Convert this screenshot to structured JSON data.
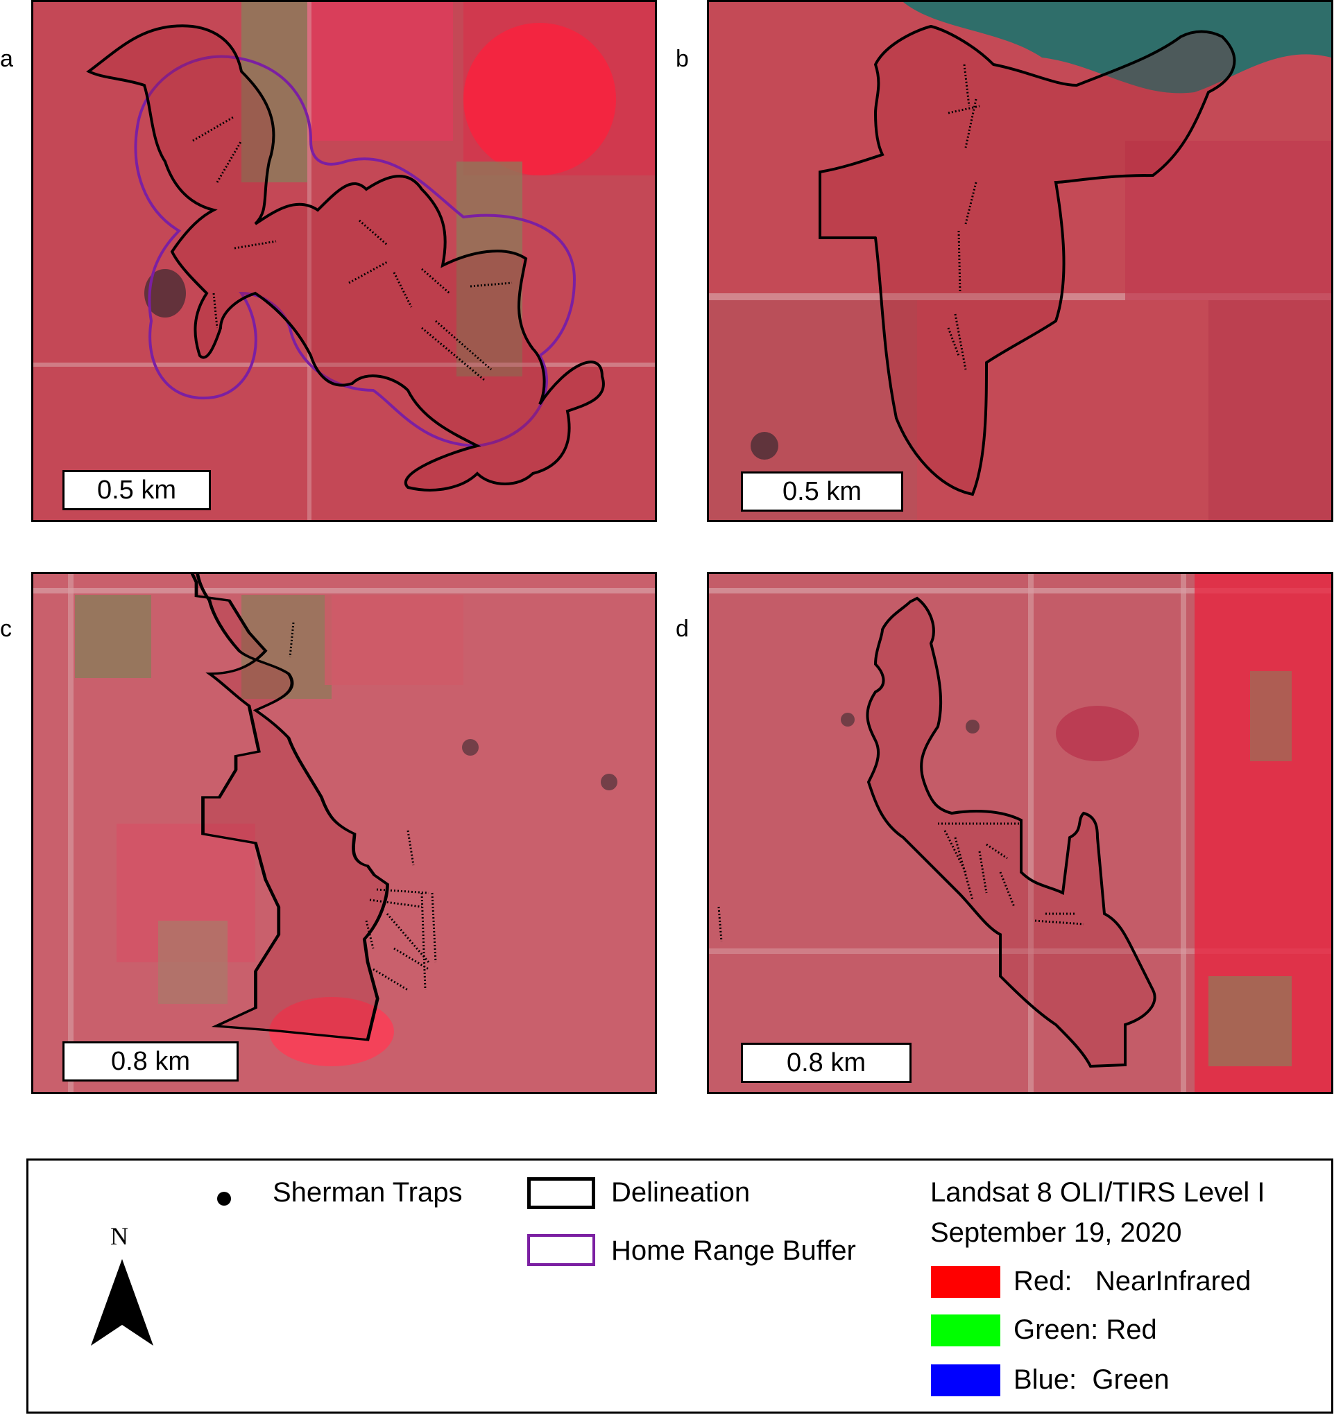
{
  "panels": [
    {
      "letter": "a",
      "scale": "0.5 km"
    },
    {
      "letter": "b",
      "scale": "0.5 km"
    },
    {
      "letter": "c",
      "scale": "0.8 km"
    },
    {
      "letter": "d",
      "scale": "0.8 km"
    }
  ],
  "legend": {
    "traps_label": "Sherman Traps",
    "delineation_label": "Delineation",
    "buffer_label": "Home Range Buffer",
    "north_label": "N",
    "imagery_title_1": "Landsat 8 OLI/TIRS Level I",
    "imagery_title_2": "September 19, 2020",
    "bands": [
      {
        "label": "Red:   NearInfrared",
        "color": "#ff0000"
      },
      {
        "label": "Green: Red",
        "color": "#00ff00"
      },
      {
        "label": "Blue:  Green",
        "color": "#0000ff"
      }
    ]
  },
  "colors": {
    "delineation": "#000000",
    "buffer": "#7b1fa2",
    "background_vegetation": "#c8404f",
    "dense_vegetation": "#e8223c",
    "bare_field": "#8c7a5c",
    "water": "#2f6e6a"
  }
}
